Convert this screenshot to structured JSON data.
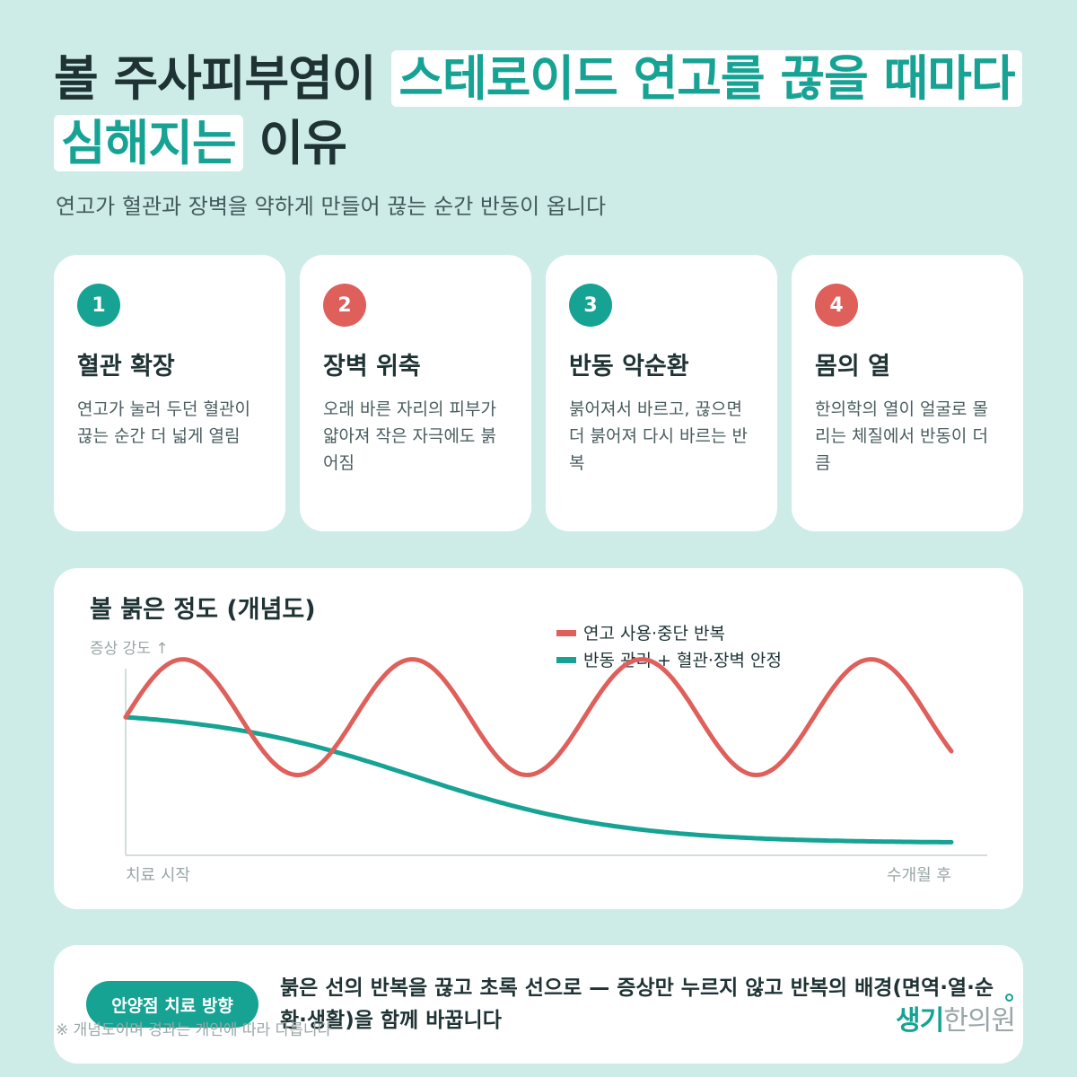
{
  "title": {
    "part1": "볼 주사피부염이",
    "highlight1": "스테로이드 연고를 끊을 때마다",
    "highlight2": "심해지는",
    "part2": "이유"
  },
  "subtitle": "연고가 혈관과 장벽을 약하게 만들어 끊는 순간 반동이 옵니다",
  "cards": [
    {
      "num": "1",
      "color": "#16a394",
      "title": "혈관 확장",
      "desc": "연고가 눌러 두던 혈관이 끊는 순간 더 넓게 열림"
    },
    {
      "num": "2",
      "color": "#df5f5b",
      "title": "장벽 위축",
      "desc": "오래 바른 자리의 피부가 얇아져 작은 자극에도 붉어짐"
    },
    {
      "num": "3",
      "color": "#16a394",
      "title": "반동 악순환",
      "desc": "붉어져서 바르고, 끊으면 더 붉어져 다시 바르는 반복"
    },
    {
      "num": "4",
      "color": "#df5f5b",
      "title": "몸의 열",
      "desc": "한의학의 열이 얼굴로 몰리는 체질에서 반동이 더 큼"
    }
  ],
  "chart": {
    "title": "볼 붉은 정도 (개념도)",
    "ylabel": "증상 강도 ↑",
    "x_start": "치료 시작",
    "x_end": "수개월 후"
  },
  "chart_data": {
    "type": "line",
    "title": "볼 붉은 정도 (개념도)",
    "ylabel": "증상 강도 ↑",
    "xlabel": "",
    "x_tick_labels": [
      "치료 시작",
      "수개월 후"
    ],
    "legend_position": "top-right",
    "grid": false,
    "series": [
      {
        "name": "연고 사용·중단 반복",
        "color": "#df5f5b",
        "function": "oscillating",
        "start": 0.74,
        "amplitude": 0.31,
        "cycles": 3.6
      },
      {
        "name": "반동 관리 + 혈관·장벽 안정",
        "color": "#16a394",
        "function": "decay",
        "start": 0.74,
        "end": 0.07
      }
    ]
  },
  "bottom": {
    "pill": "안양점 치료 방향",
    "text": "붉은 선의 반복을 끊고 초록 선으로 — 증상만 누르지 않고 반복의 배경(면역·열·순환·생활)을 함께 바꿉니다"
  },
  "note": "※ 개념도이며 경과는 개인에 따라 다릅니다",
  "logo": {
    "primary": "생기",
    "secondary": "한의원"
  }
}
